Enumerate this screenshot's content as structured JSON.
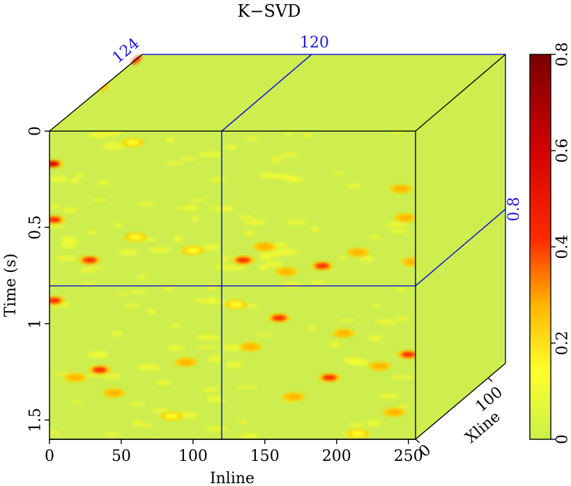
{
  "chart_data": {
    "type": "heatmap",
    "title": "K−SVD",
    "xlabel": "Inline",
    "ylabel": "Time (s)",
    "zlabel": "Xline",
    "x_ticks": [
      "0",
      "50",
      "100",
      "150",
      "200",
      "250"
    ],
    "y_ticks": [
      "0",
      "0.5",
      "1",
      "1.5"
    ],
    "z_ticks": [
      "0",
      "100"
    ],
    "xlim": [
      0,
      255
    ],
    "ylim": [
      0,
      1.6
    ],
    "zlim": [
      0,
      124
    ],
    "slices": {
      "inline": "120",
      "xline": "124",
      "time": "0.8"
    },
    "colorbar": {
      "ticks": [
        "0",
        "0.2",
        "0.4",
        "0.6",
        "0.8"
      ],
      "range": [
        0,
        0.8
      ],
      "colormap": [
        "#c8f04a",
        "#ffff2a",
        "#ffb400",
        "#ff2a00",
        "#d40000",
        "#780000"
      ]
    },
    "hotspots": [
      {
        "x": 2,
        "t": 0.17,
        "v": 0.6
      },
      {
        "x": 3,
        "t": 0.46,
        "v": 0.5
      },
      {
        "x": 28,
        "t": 0.67,
        "v": 0.45
      },
      {
        "x": 3,
        "t": 0.88,
        "v": 0.55
      },
      {
        "x": 35,
        "t": 1.24,
        "v": 0.45
      },
      {
        "x": 18,
        "t": 1.28,
        "v": 0.3
      },
      {
        "x": 45,
        "t": 1.36,
        "v": 0.25
      },
      {
        "x": 95,
        "t": 1.2,
        "v": 0.25
      },
      {
        "x": 85,
        "t": 1.48,
        "v": 0.2
      },
      {
        "x": 58,
        "t": 0.06,
        "v": 0.15
      },
      {
        "x": 135,
        "t": 0.67,
        "v": 0.4
      },
      {
        "x": 150,
        "t": 0.6,
        "v": 0.35
      },
      {
        "x": 165,
        "t": 0.73,
        "v": 0.3
      },
      {
        "x": 190,
        "t": 0.7,
        "v": 0.55
      },
      {
        "x": 215,
        "t": 0.63,
        "v": 0.25
      },
      {
        "x": 245,
        "t": 0.3,
        "v": 0.35
      },
      {
        "x": 248,
        "t": 0.45,
        "v": 0.3
      },
      {
        "x": 253,
        "t": 0.68,
        "v": 0.35
      },
      {
        "x": 160,
        "t": 0.97,
        "v": 0.4
      },
      {
        "x": 205,
        "t": 1.05,
        "v": 0.35
      },
      {
        "x": 140,
        "t": 1.12,
        "v": 0.3
      },
      {
        "x": 195,
        "t": 1.28,
        "v": 0.45
      },
      {
        "x": 230,
        "t": 1.22,
        "v": 0.35
      },
      {
        "x": 250,
        "t": 1.16,
        "v": 0.5
      },
      {
        "x": 170,
        "t": 1.38,
        "v": 0.25
      },
      {
        "x": 240,
        "t": 1.46,
        "v": 0.25
      },
      {
        "x": 215,
        "t": 1.57,
        "v": 0.2
      },
      {
        "x": 130,
        "t": 0.9,
        "v": 0.2
      },
      {
        "x": 60,
        "t": 0.55,
        "v": 0.2
      },
      {
        "x": 100,
        "t": 0.62,
        "v": 0.2
      }
    ]
  }
}
